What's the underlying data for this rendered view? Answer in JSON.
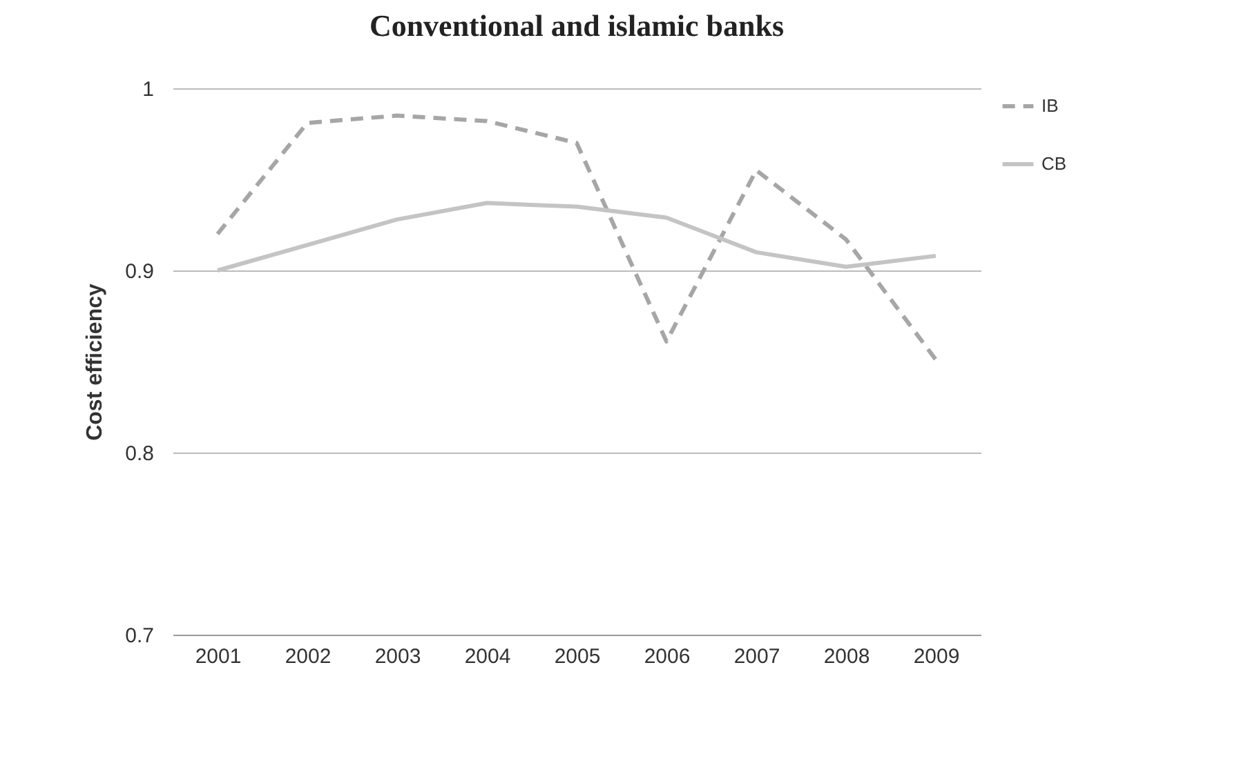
{
  "chart_data": {
    "type": "line",
    "title": "Conventional and islamic banks",
    "ylabel": "Cost efficiency",
    "categories": [
      "2001",
      "2002",
      "2003",
      "2004",
      "2005",
      "2006",
      "2007",
      "2008",
      "2009"
    ],
    "series": [
      {
        "name": "IB",
        "color": "#a6a6a6",
        "line_style": "dashed",
        "values": [
          0.92,
          0.981,
          0.985,
          0.982,
          0.97,
          0.861,
          0.955,
          0.917,
          0.851
        ]
      },
      {
        "name": "CB",
        "color": "#c4c4c4",
        "line_style": "solid",
        "values": [
          0.9,
          0.914,
          0.928,
          0.937,
          0.935,
          0.929,
          0.91,
          0.902,
          0.908
        ]
      }
    ],
    "ylim": [
      0.7,
      1
    ],
    "yticks": [
      0.7,
      0.8,
      0.9,
      1
    ],
    "grid": "y",
    "legend": "right",
    "marker": "none"
  }
}
